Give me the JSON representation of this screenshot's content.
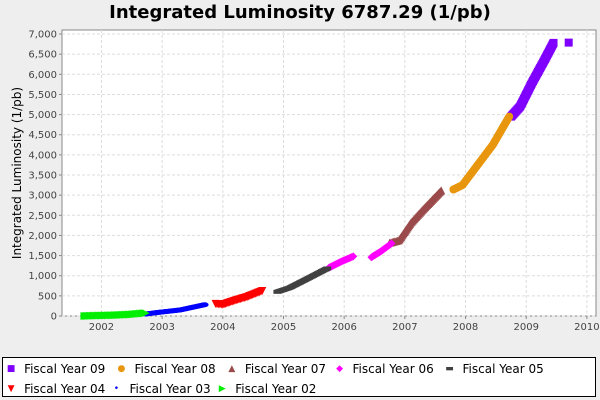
{
  "chart_data": {
    "type": "scatter",
    "title": "Integrated Luminosity 6787.29 (1/pb)",
    "xlabel": "",
    "ylabel": "Integrated Luminosity (1/pb)",
    "xlim": [
      2001.35,
      2010.15
    ],
    "ylim": [
      0,
      7100
    ],
    "x_ticks": [
      "2002",
      "2003",
      "2004",
      "2005",
      "2006",
      "2007",
      "2008",
      "2009",
      "2010"
    ],
    "y_ticks": [
      "0",
      "500",
      "1,000",
      "1,500",
      "2,000",
      "2,500",
      "3,000",
      "3,500",
      "4,000",
      "4,500",
      "5,000",
      "5,500",
      "6,000",
      "6,500",
      "7,000"
    ],
    "grid": true,
    "legend_position": "bottom",
    "series": [
      {
        "name": "Fiscal Year 09",
        "color": "#7f00ff",
        "marker": "square",
        "segments": [
          [
            [
              2008.75,
              4950
            ],
            [
              2008.9,
              5200
            ],
            [
              2009.1,
              5800
            ],
            [
              2009.3,
              6350
            ],
            [
              2009.45,
              6780
            ]
          ],
          [
            [
              2009.7,
              6787
            ]
          ]
        ]
      },
      {
        "name": "Fiscal Year 08",
        "color": "#e8960e",
        "marker": "circle",
        "segments": [
          [
            [
              2007.8,
              3140
            ],
            [
              2007.95,
              3250
            ],
            [
              2008.2,
              3750
            ],
            [
              2008.45,
              4250
            ],
            [
              2008.72,
              4950
            ]
          ]
        ]
      },
      {
        "name": "Fiscal Year 07",
        "color": "#9a4a4a",
        "marker": "triangle-up",
        "segments": [
          [
            [
              2006.75,
              1820
            ],
            [
              2006.9,
              1880
            ],
            [
              2007.1,
              2320
            ],
            [
              2007.3,
              2650
            ],
            [
              2007.6,
              3120
            ]
          ]
        ]
      },
      {
        "name": "Fiscal Year 06",
        "color": "#ff00ff",
        "marker": "diamond",
        "segments": [
          [
            [
              2005.75,
              1200
            ],
            [
              2005.95,
              1350
            ],
            [
              2006.15,
              1480
            ]
          ],
          [
            [
              2006.45,
              1460
            ],
            [
              2006.6,
              1600
            ],
            [
              2006.78,
              1800
            ]
          ]
        ]
      },
      {
        "name": "Fiscal Year 05",
        "color": "#404040",
        "marker": "rect",
        "segments": [
          [
            [
              2004.9,
              600
            ],
            [
              2005.1,
              700
            ],
            [
              2005.4,
              930
            ],
            [
              2005.72,
              1180
            ]
          ]
        ]
      },
      {
        "name": "Fiscal Year 04",
        "color": "#ff0000",
        "marker": "triangle-down",
        "segments": [
          [
            [
              2003.88,
              300
            ],
            [
              2004.0,
              280
            ],
            [
              2004.2,
              380
            ],
            [
              2004.4,
              470
            ],
            [
              2004.65,
              620
            ]
          ]
        ]
      },
      {
        "name": "Fiscal Year 03",
        "color": "#0000ff",
        "marker": "ellipse",
        "segments": [
          [
            [
              2002.73,
              50
            ],
            [
              2003.0,
              100
            ],
            [
              2003.3,
              150
            ],
            [
              2003.7,
              280
            ]
          ]
        ]
      },
      {
        "name": "Fiscal Year 02",
        "color": "#00ee00",
        "marker": "triangle-right",
        "segments": [
          [
            [
              2001.72,
              0
            ],
            [
              2001.9,
              10
            ],
            [
              2002.2,
              20
            ],
            [
              2002.5,
              40
            ],
            [
              2002.73,
              70
            ]
          ]
        ]
      }
    ]
  }
}
